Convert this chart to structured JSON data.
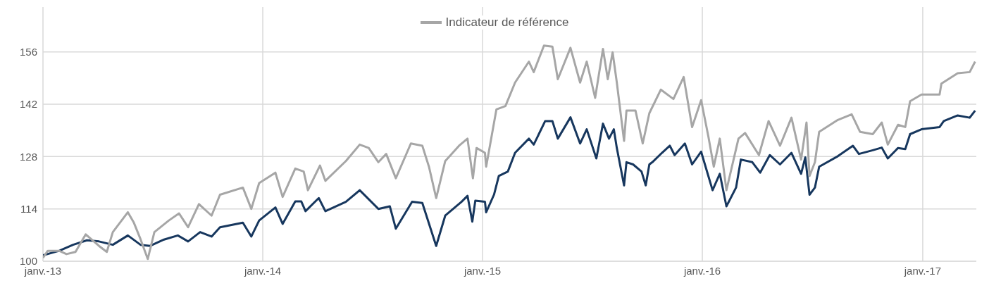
{
  "chart_data": {
    "type": "line",
    "legend": "top",
    "grid": true,
    "line_style": "solid",
    "marker": "none",
    "xlim": [
      "2013-01-01",
      "2017-03-31"
    ],
    "xticks": [
      {
        "value": "2013-01-01",
        "label": "janv.-13"
      },
      {
        "value": "2014-01-01",
        "label": "janv.-14"
      },
      {
        "value": "2015-01-01",
        "label": "janv.-15"
      },
      {
        "value": "2016-01-01",
        "label": "janv.-16"
      },
      {
        "value": "2017-01-01",
        "label": "janv.-17"
      }
    ],
    "ylim": [
      100,
      168
    ],
    "yticks": [
      100,
      114,
      128,
      142,
      156
    ],
    "series": [
      {
        "color": "#17375e",
        "x": [
          "2013-01-01",
          "2013-01-28",
          "2013-02-20",
          "2013-03-15",
          "2013-04-04",
          "2013-04-27",
          "2013-05-22",
          "2013-06-12",
          "2013-06-28",
          "2013-07-21",
          "2013-08-13",
          "2013-08-30",
          "2013-09-19",
          "2013-10-08",
          "2013-10-22",
          "2013-11-29",
          "2013-12-13",
          "2013-12-26",
          "2014-01-22",
          "2014-02-03",
          "2014-02-24",
          "2014-03-06",
          "2014-03-13",
          "2014-04-04",
          "2014-04-15",
          "2014-05-19",
          "2014-06-11",
          "2014-07-12",
          "2014-07-31",
          "2014-08-10",
          "2014-09-06",
          "2014-09-23",
          "2014-10-16",
          "2014-10-31",
          "2014-11-27",
          "2014-12-07",
          "2014-12-15",
          "2014-12-20",
          "2015-01-05",
          "2015-01-07",
          "2015-01-20",
          "2015-01-28",
          "2015-02-12",
          "2015-02-24",
          "2015-03-19",
          "2015-03-27",
          "2015-04-15",
          "2015-04-27",
          "2015-05-06",
          "2015-05-27",
          "2015-06-12",
          "2015-06-23",
          "2015-07-09",
          "2015-07-20",
          "2015-07-30",
          "2015-08-07",
          "2015-08-12",
          "2015-08-24",
          "2015-08-28",
          "2015-09-08",
          "2015-09-22",
          "2015-09-29",
          "2015-10-05",
          "2015-10-10",
          "2015-10-26",
          "2015-11-08",
          "2015-11-16",
          "2015-12-03",
          "2015-12-15",
          "2015-12-30",
          "2016-01-18",
          "2016-01-30",
          "2016-02-10",
          "2016-02-26",
          "2016-03-05",
          "2016-03-24",
          "2016-04-06",
          "2016-04-22",
          "2016-05-09",
          "2016-05-28",
          "2016-06-13",
          "2016-06-20",
          "2016-06-27",
          "2016-07-06",
          "2016-07-13",
          "2016-08-13",
          "2016-09-07",
          "2016-09-17",
          "2016-10-10",
          "2016-10-25",
          "2016-11-04",
          "2016-11-21",
          "2016-12-03",
          "2016-12-11",
          "2016-12-30",
          "2017-01-29",
          "2017-02-05",
          "2017-02-28",
          "2017-03-20",
          "2017-03-29"
        ],
        "values": [
          101.6,
          102.8,
          104.4,
          105.6,
          105.3,
          104.4,
          106.9,
          104.4,
          104.1,
          105.8,
          106.9,
          105.3,
          107.8,
          106.6,
          109.1,
          110.3,
          106.6,
          110.9,
          114.4,
          110.0,
          116.0,
          116.0,
          113.4,
          116.9,
          113.4,
          115.9,
          119.0,
          114.0,
          114.7,
          108.7,
          115.9,
          115.6,
          104.1,
          112.2,
          115.9,
          117.5,
          110.6,
          116.2,
          115.9,
          113.1,
          117.8,
          122.8,
          124.0,
          129.0,
          132.8,
          131.2,
          137.5,
          137.5,
          132.8,
          138.5,
          131.5,
          135.3,
          127.5,
          136.8,
          132.8,
          135.3,
          130.3,
          120.3,
          126.5,
          125.9,
          124.0,
          120.3,
          125.9,
          126.5,
          129.0,
          130.9,
          128.4,
          131.5,
          125.9,
          129.3,
          119.0,
          123.4,
          114.7,
          119.7,
          127.2,
          126.5,
          123.7,
          128.4,
          125.9,
          129.0,
          123.4,
          127.8,
          117.8,
          119.7,
          125.3,
          128.1,
          130.9,
          128.7,
          129.7,
          130.4,
          127.5,
          130.3,
          130.0,
          134.0,
          135.3,
          135.9,
          137.5,
          139.0,
          138.4,
          140.3
        ]
      },
      {
        "name": "Indicateur de référence",
        "color": "#a6a6a6",
        "x": [
          "2013-01-01",
          "2013-01-09",
          "2013-01-28",
          "2013-02-09",
          "2013-02-24",
          "2013-03-13",
          "2013-04-04",
          "2013-04-17",
          "2013-04-27",
          "2013-05-22",
          "2013-06-01",
          "2013-06-12",
          "2013-06-24",
          "2013-07-05",
          "2013-07-29",
          "2013-08-15",
          "2013-08-30",
          "2013-09-17",
          "2013-10-08",
          "2013-10-22",
          "2013-11-29",
          "2013-12-13",
          "2013-12-26",
          "2014-01-22",
          "2014-02-03",
          "2014-02-24",
          "2014-03-10",
          "2014-03-17",
          "2014-04-06",
          "2014-04-15",
          "2014-05-19",
          "2014-06-11",
          "2014-06-26",
          "2014-07-12",
          "2014-07-25",
          "2014-08-10",
          "2014-09-04",
          "2014-09-23",
          "2014-10-04",
          "2014-10-16",
          "2014-10-31",
          "2014-11-23",
          "2014-12-07",
          "2014-12-16",
          "2014-12-22",
          "2015-01-05",
          "2015-01-07",
          "2015-01-16",
          "2015-01-24",
          "2015-02-08",
          "2015-02-24",
          "2015-03-19",
          "2015-03-27",
          "2015-04-13",
          "2015-04-27",
          "2015-05-06",
          "2015-05-27",
          "2015-06-12",
          "2015-06-23",
          "2015-07-07",
          "2015-07-20",
          "2015-07-28",
          "2015-08-05",
          "2015-08-12",
          "2015-08-24",
          "2015-08-28",
          "2015-09-12",
          "2015-09-24",
          "2015-10-05",
          "2015-10-24",
          "2015-11-14",
          "2015-12-01",
          "2015-12-15",
          "2015-12-30",
          "2016-01-11",
          "2016-01-20",
          "2016-01-30",
          "2016-02-10",
          "2016-03-01",
          "2016-03-12",
          "2016-04-04",
          "2016-04-20",
          "2016-05-09",
          "2016-05-28",
          "2016-06-13",
          "2016-06-22",
          "2016-06-27",
          "2016-07-06",
          "2016-07-13",
          "2016-08-13",
          "2016-09-05",
          "2016-09-19",
          "2016-10-10",
          "2016-10-25",
          "2016-11-04",
          "2016-11-21",
          "2016-12-03",
          "2016-12-11",
          "2016-12-30",
          "2017-01-29",
          "2017-02-01",
          "2017-02-28",
          "2017-03-20",
          "2017-03-29"
        ],
        "values": [
          100.9,
          102.8,
          102.8,
          101.9,
          102.5,
          107.2,
          104.1,
          102.5,
          107.8,
          113.1,
          110.3,
          105.9,
          100.6,
          107.8,
          110.9,
          112.8,
          109.1,
          115.3,
          112.2,
          117.8,
          119.7,
          114.0,
          120.9,
          123.7,
          117.2,
          124.8,
          124.0,
          119.0,
          125.6,
          121.5,
          126.8,
          131.2,
          130.3,
          126.5,
          128.7,
          122.2,
          131.5,
          130.9,
          125.3,
          116.9,
          126.8,
          130.9,
          132.8,
          122.2,
          130.3,
          129.0,
          125.3,
          133.4,
          140.6,
          141.5,
          147.8,
          153.4,
          150.6,
          157.7,
          157.4,
          148.7,
          157.1,
          147.8,
          153.4,
          143.7,
          156.8,
          148.7,
          155.9,
          147.8,
          132.2,
          140.3,
          140.3,
          131.5,
          139.6,
          145.9,
          143.4,
          149.3,
          135.9,
          143.1,
          133.4,
          125.3,
          132.8,
          119.0,
          132.8,
          134.3,
          128.4,
          137.5,
          130.9,
          138.4,
          127.2,
          137.1,
          122.8,
          126.5,
          134.6,
          137.8,
          139.3,
          134.6,
          134.0,
          137.1,
          131.2,
          136.5,
          135.9,
          142.8,
          144.6,
          144.6,
          147.5,
          150.3,
          150.6,
          153.4
        ]
      }
    ]
  }
}
